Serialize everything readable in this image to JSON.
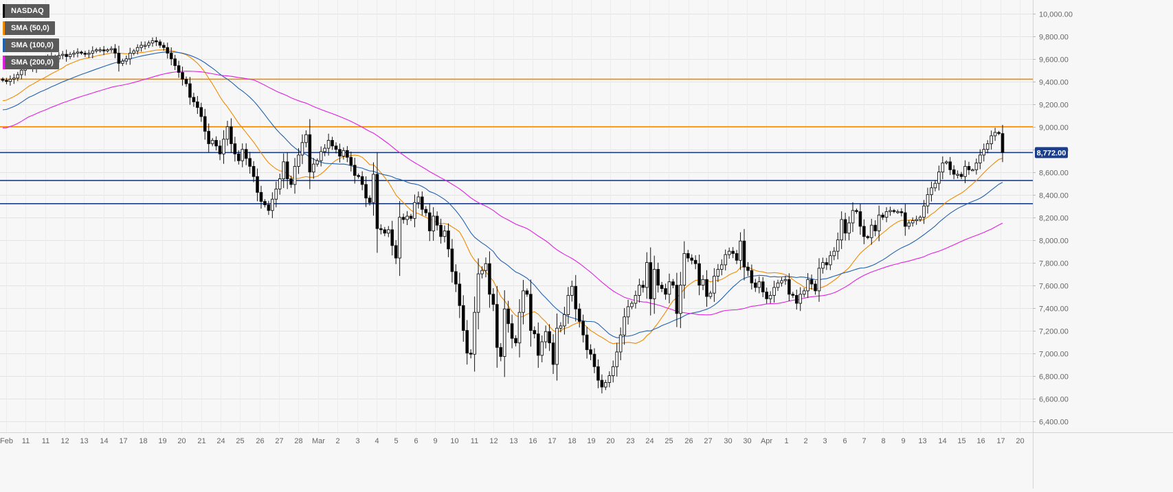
{
  "chart_data": {
    "type": "candlestick",
    "title": "",
    "instrument": "NASDAQ",
    "xlabel": "",
    "ylabel": "",
    "ylim": [
      6300,
      10120
    ],
    "y_ticks": [
      6400,
      6600,
      6800,
      7000,
      7200,
      7400,
      7600,
      7800,
      8000,
      8200,
      8400,
      8600,
      8800,
      9000,
      9200,
      9400,
      9600,
      9800,
      10000
    ],
    "y_tick_labels": [
      "6,400.00",
      "6,600.00",
      "6,800.00",
      "7,000.00",
      "7,200.00",
      "7,400.00",
      "7,600.00",
      "7,800.00",
      "8,000.00",
      "8,200.00",
      "8,400.00",
      "8,600.00",
      "8,800.00",
      "9,000.00",
      "9,200.00",
      "9,400.00",
      "9,600.00",
      "9,800.00",
      "10,000.00"
    ],
    "x_tick_labels": [
      "Feb",
      "11",
      "11",
      "12",
      "13",
      "14",
      "17",
      "18",
      "19",
      "20",
      "21",
      "24",
      "25",
      "26",
      "27",
      "28",
      "Mar",
      "2",
      "3",
      "4",
      "5",
      "6",
      "9",
      "10",
      "11",
      "12",
      "13",
      "16",
      "17",
      "18",
      "19",
      "20",
      "23",
      "24",
      "25",
      "26",
      "27",
      "30",
      "30",
      "Apr",
      "1",
      "2",
      "3",
      "6",
      "7",
      "8",
      "9",
      "13",
      "14",
      "15",
      "16",
      "17",
      "20"
    ],
    "grid": true,
    "current_price": 8772,
    "current_price_label": "8,772.00",
    "horizontal_levels": [
      {
        "value": 9420,
        "color": "#f08a00"
      },
      {
        "value": 9000,
        "color": "#f08a00"
      },
      {
        "value": 8772,
        "color": "#1a3e8c"
      },
      {
        "value": 8525,
        "color": "#1a3e8c"
      },
      {
        "value": 8320,
        "color": "#1a3e8c"
      }
    ],
    "legend": [
      {
        "label": "NASDAQ",
        "color": "#000000"
      },
      {
        "label": "SMA (50,0)",
        "color": "#f08a00"
      },
      {
        "label": "SMA (100,0)",
        "color": "#2060b0"
      },
      {
        "label": "SMA (200,0)",
        "color": "#e020e0"
      }
    ],
    "legend_placement": "top-left",
    "series": [
      {
        "type": "candles",
        "color_up": "#ffffff",
        "color_down": "#000000",
        "close": [
          9410,
          9400,
          9420,
          9430,
          9460,
          9500,
          9540,
          9560,
          9520,
          9560,
          9580,
          9550,
          9600,
          9620,
          9600,
          9630,
          9640,
          9620,
          9640,
          9650,
          9660,
          9650,
          9640,
          9650,
          9670,
          9680,
          9680,
          9670,
          9680,
          9690,
          9650,
          9560,
          9580,
          9600,
          9650,
          9670,
          9700,
          9720,
          9720,
          9740,
          9760,
          9750,
          9720,
          9700,
          9650,
          9600,
          9540,
          9480,
          9420,
          9380,
          9260,
          9220,
          9170,
          9090,
          8960,
          8850,
          8880,
          8830,
          8760,
          8890,
          9000,
          8850,
          8760,
          8700,
          8800,
          8720,
          8650,
          8560,
          8420,
          8340,
          8310,
          8260,
          8360,
          8450,
          8540,
          8690,
          8540,
          8490,
          8650,
          8750,
          8860,
          8930,
          8600,
          8670,
          8700,
          8780,
          8810,
          8880,
          8830,
          8800,
          8740,
          8790,
          8730,
          8660,
          8570,
          8560,
          8490,
          8370,
          8330,
          8580,
          8100,
          8090,
          8060,
          8090,
          7950,
          7840,
          8200,
          8180,
          8210,
          8190,
          8330,
          8380,
          8270,
          8240,
          8080,
          8210,
          8130,
          8030,
          8080,
          7920,
          7720,
          7610,
          7420,
          7200,
          7000,
          6990,
          7360,
          7700,
          7730,
          7790,
          7520,
          7430,
          7050,
          6970,
          7390,
          7260,
          7130,
          7090,
          7360,
          7550,
          7520,
          7200,
          7170,
          6980,
          7100,
          7190,
          7090,
          6900,
          7220,
          7240,
          7340,
          7510,
          7590,
          7390,
          7280,
          7160,
          7030,
          6990,
          6880,
          6760,
          6700,
          6740,
          6800,
          6880,
          7010,
          7160,
          7320,
          7410,
          7440,
          7510,
          7600,
          7580,
          7800,
          7480,
          7740,
          7600,
          7570,
          7520,
          7630,
          7600,
          7350,
          7600,
          7880,
          7840,
          7820,
          7790,
          7600,
          7650,
          7500,
          7530,
          7680,
          7740,
          7780,
          7870,
          7900,
          7880,
          7820,
          7990,
          7760,
          7730,
          7620,
          7580,
          7630,
          7540,
          7480,
          7510,
          7580,
          7620,
          7640,
          7650,
          7520,
          7510,
          7440,
          7520,
          7550,
          7650,
          7610,
          7550,
          7750,
          7800,
          7780,
          7860,
          7900,
          8000,
          8180,
          8060,
          8150,
          8260,
          8250,
          8120,
          8030,
          8020,
          8130,
          8080,
          8220,
          8200,
          8250,
          8260,
          8250,
          8250,
          8240,
          8120,
          8150,
          8170,
          8180,
          8200,
          8300,
          8400,
          8460,
          8500,
          8600,
          8680,
          8690,
          8620,
          8580,
          8580,
          8560,
          8650,
          8620,
          8620,
          8680,
          8750,
          8800,
          8850,
          8920,
          8950,
          8940,
          8772
        ]
      }
    ]
  }
}
